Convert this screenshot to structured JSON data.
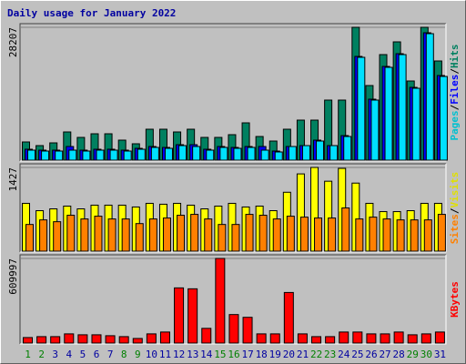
{
  "title": "Daily usage for January 2022",
  "legend_separator": "/",
  "chart_data": [
    {
      "type": "bar",
      "ylim": [
        0,
        28207
      ],
      "yticks": [
        28207
      ],
      "series": [
        {
          "name": "Hits",
          "color": "#008060",
          "text_color": "#008060",
          "values": [
            3864,
            3091,
            3671,
            5989,
            4830,
            5603,
            5603,
            4250,
            3478,
            6569,
            6569,
            5989,
            6569,
            4830,
            4830,
            5410,
            7921,
            5023,
            4057,
            6569,
            8501,
            8501,
            12751,
            12751,
            28207,
            15842,
            22411,
            25116,
            16808,
            28207,
            21059
          ]
        },
        {
          "name": "Files",
          "color": "#0000ff",
          "text_color": "#0000ff",
          "values": [
            2318,
            2125,
            2125,
            2898,
            2125,
            2318,
            2318,
            2125,
            2512,
            2898,
            2705,
            3284,
            3284,
            2318,
            2898,
            2705,
            2898,
            2898,
            1932,
            2898,
            3091,
            4250,
            3091,
            5216,
            22025,
            12944,
            19899,
            22604,
            15456,
            27047,
            17967
          ]
        },
        {
          "name": "Pages",
          "color": "#00e0ff",
          "text_color": "#00c0d0",
          "values": [
            2125,
            1932,
            1932,
            2125,
            1932,
            2125,
            2125,
            1932,
            2318,
            2705,
            2512,
            3091,
            2898,
            2125,
            2705,
            2512,
            2705,
            2125,
            1739,
            2898,
            3091,
            4057,
            3091,
            5023,
            21831,
            12751,
            19706,
            22411,
            15263,
            26854,
            17774
          ]
        }
      ]
    },
    {
      "type": "bar",
      "ylim": [
        0,
        1427
      ],
      "yticks": [
        1427
      ],
      "series": [
        {
          "name": "Visits",
          "color": "#ffff00",
          "text_color": "#e0e000",
          "values": [
            815,
            690,
            721,
            768,
            721,
            784,
            784,
            784,
            753,
            815,
            800,
            815,
            784,
            721,
            768,
            815,
            753,
            768,
            690,
            1004,
            1317,
            1427,
            1192,
            1411,
            1160,
            815,
            674,
            674,
            690,
            815,
            815
          ]
        },
        {
          "name": "Sites",
          "color": "#ff8000",
          "text_color": "#ff8000",
          "values": [
            455,
            533,
            502,
            612,
            549,
            596,
            549,
            549,
            470,
            549,
            565,
            612,
            627,
            549,
            455,
            455,
            627,
            612,
            549,
            596,
            580,
            565,
            565,
            737,
            549,
            580,
            549,
            533,
            533,
            533,
            627
          ]
        }
      ]
    },
    {
      "type": "bar",
      "ylim": [
        0,
        609997
      ],
      "yticks": [
        609997
      ],
      "categories": [
        "1",
        "2",
        "3",
        "4",
        "5",
        "6",
        "7",
        "8",
        "9",
        "10",
        "11",
        "12",
        "13",
        "14",
        "15",
        "16",
        "17",
        "18",
        "19",
        "20",
        "21",
        "22",
        "23",
        "24",
        "25",
        "26",
        "27",
        "28",
        "29",
        "30",
        "31"
      ],
      "category_colors": [
        "#008000",
        "#008000",
        "#0000a0",
        "#0000a0",
        "#0000a0",
        "#0000a0",
        "#0000a0",
        "#008000",
        "#008000",
        "#0000a0",
        "#0000a0",
        "#0000a0",
        "#0000a0",
        "#0000a0",
        "#008000",
        "#008000",
        "#0000a0",
        "#0000a0",
        "#0000a0",
        "#0000a0",
        "#0000a0",
        "#008000",
        "#008000",
        "#0000a0",
        "#0000a0",
        "#0000a0",
        "#0000a0",
        "#0000a0",
        "#008000",
        "#008000",
        "#0000a0"
      ],
      "series": [
        {
          "name": "KBytes",
          "color": "#ff0000",
          "text_color": "#ff0000",
          "values": [
            39780,
            46410,
            46410,
            66300,
            59670,
            59670,
            53040,
            46410,
            33150,
            66300,
            79560,
            397800,
            391170,
            106080,
            609997,
            205530,
            185640,
            66300,
            66300,
            364650,
            66300,
            46410,
            46410,
            79560,
            79560,
            66300,
            66300,
            79560,
            59670,
            66300,
            79560
          ]
        }
      ]
    }
  ]
}
